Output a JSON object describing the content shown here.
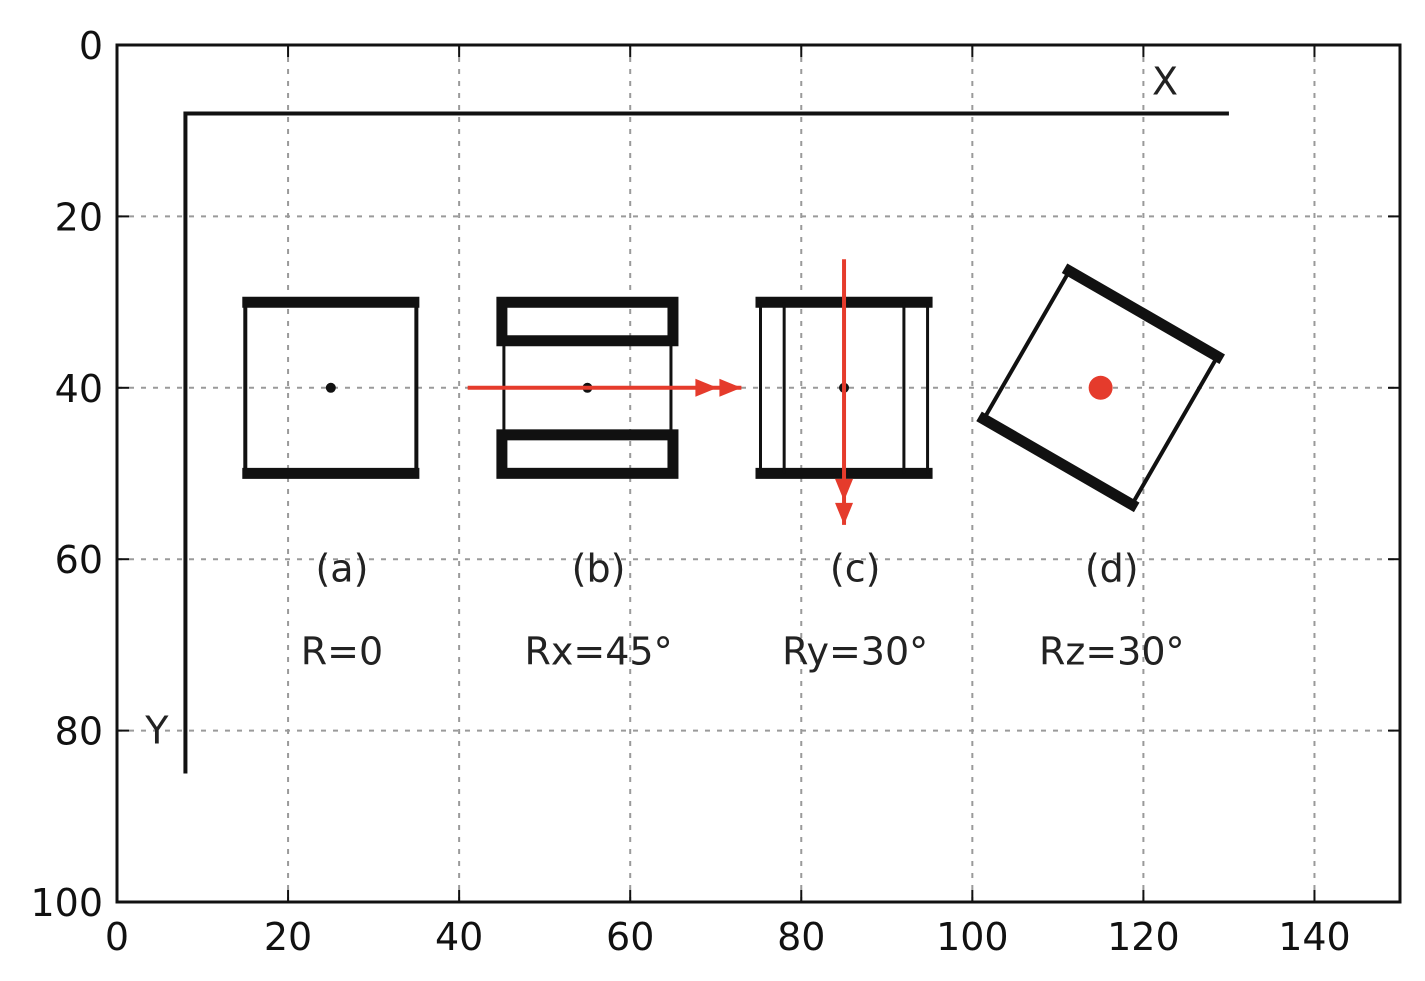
{
  "chart_data": {
    "type": "scatter",
    "title": "",
    "xlabel": "",
    "ylabel": "",
    "xlim": [
      0,
      150
    ],
    "ylim": [
      100,
      0
    ],
    "y_inverted": true,
    "grid": true,
    "x_ticks": [
      0,
      20,
      40,
      60,
      80,
      100,
      120,
      140
    ],
    "y_ticks": [
      0,
      20,
      40,
      60,
      80,
      100
    ],
    "x_tick_labels": [
      "0",
      "20",
      "40",
      "60",
      "80",
      "100",
      "120",
      "140"
    ],
    "y_tick_labels": [
      "0",
      "20",
      "40",
      "60",
      "80",
      "100"
    ],
    "axes_drawing": {
      "x_axis_label": "X",
      "y_axis_label": "Y",
      "origin": [
        8,
        8
      ],
      "x_end": 130,
      "y_end": 85
    },
    "panels": [
      {
        "label": "(a)",
        "rotation": "R=0",
        "center": [
          25,
          40
        ],
        "size": 20
      },
      {
        "label": "(b)",
        "rotation": "Rx=45°",
        "center": [
          55,
          40
        ],
        "size": 20
      },
      {
        "label": "(c)",
        "rotation": "Ry=30°",
        "center": [
          85,
          40
        ],
        "size": 20
      },
      {
        "label": "(d)",
        "rotation": "Rz=30°",
        "center": [
          115,
          40
        ],
        "size": 20
      }
    ],
    "rotation_axes": [
      {
        "panel": "(b)",
        "from": [
          41,
          40
        ],
        "to": [
          73,
          40
        ]
      },
      {
        "panel": "(c)",
        "from": [
          85,
          25
        ],
        "to": [
          85,
          56
        ]
      }
    ],
    "colors": {
      "frame": "#111111",
      "accent": "#e53b2c",
      "grid": "#9a9a9a"
    }
  }
}
